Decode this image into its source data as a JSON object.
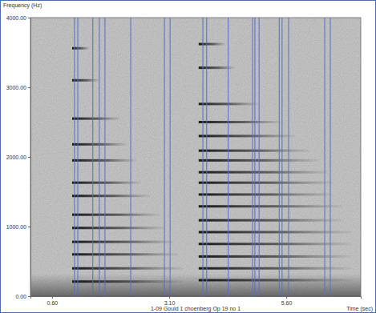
{
  "chart_data": {
    "type": "spectrogram",
    "title": "1-09 Gould 1 choenberg Op 19 no 1",
    "xlabel": "Time (sec)",
    "ylabel": "Frequency (Hz)",
    "xlim": [
      0.14,
      7.19
    ],
    "ylim": [
      0,
      4000
    ],
    "xticks": [
      {
        "value": 0.6,
        "label": "0.60"
      },
      {
        "value": 3.1,
        "label": "3.10"
      },
      {
        "value": 5.6,
        "label": "5.60"
      }
    ],
    "yticks": [
      {
        "value": 0,
        "label": "0.00"
      },
      {
        "value": 1000,
        "label": "1000.00"
      },
      {
        "value": 2000,
        "label": "2000.00"
      },
      {
        "value": 3000,
        "label": "3000.00"
      },
      {
        "value": 4000,
        "label": "4000.00"
      }
    ],
    "grid": false,
    "color": "#5b6fc0",
    "markers": [
      1.08,
      1.15,
      1.47,
      1.61,
      1.73,
      2.28,
      3.0,
      3.12,
      3.82,
      3.9,
      4.36,
      4.88,
      4.93,
      5.02,
      5.45,
      5.51,
      5.65,
      6.42,
      6.54
    ],
    "partials": [
      {
        "start": 1.03,
        "end": 1.4,
        "frequency": 3560
      },
      {
        "start": 1.03,
        "end": 1.6,
        "frequency": 3100
      },
      {
        "start": 1.03,
        "end": 2.06,
        "frequency": 2550
      },
      {
        "start": 1.03,
        "end": 2.2,
        "frequency": 2180
      },
      {
        "start": 1.03,
        "end": 2.4,
        "frequency": 1950
      },
      {
        "start": 1.03,
        "end": 2.5,
        "frequency": 1630
      },
      {
        "start": 1.03,
        "end": 2.7,
        "frequency": 1440
      },
      {
        "start": 1.03,
        "end": 2.9,
        "frequency": 1170
      },
      {
        "start": 1.03,
        "end": 3.0,
        "frequency": 980
      },
      {
        "start": 1.03,
        "end": 3.2,
        "frequency": 780
      },
      {
        "start": 1.03,
        "end": 3.3,
        "frequency": 600
      },
      {
        "start": 1.03,
        "end": 3.4,
        "frequency": 400
      },
      {
        "start": 1.03,
        "end": 3.4,
        "frequency": 210
      },
      {
        "start": 3.73,
        "end": 4.3,
        "frequency": 3620
      },
      {
        "start": 3.73,
        "end": 4.5,
        "frequency": 3280
      },
      {
        "start": 3.73,
        "end": 5.0,
        "frequency": 2760
      },
      {
        "start": 3.73,
        "end": 5.5,
        "frequency": 2500
      },
      {
        "start": 3.73,
        "end": 5.8,
        "frequency": 2300
      },
      {
        "start": 3.73,
        "end": 6.1,
        "frequency": 2090
      },
      {
        "start": 3.73,
        "end": 6.3,
        "frequency": 1950
      },
      {
        "start": 3.73,
        "end": 6.5,
        "frequency": 1780
      },
      {
        "start": 3.73,
        "end": 6.6,
        "frequency": 1630
      },
      {
        "start": 3.73,
        "end": 6.6,
        "frequency": 1460
      },
      {
        "start": 3.73,
        "end": 6.8,
        "frequency": 1290
      },
      {
        "start": 3.73,
        "end": 6.8,
        "frequency": 1090
      },
      {
        "start": 3.73,
        "end": 7.0,
        "frequency": 920
      },
      {
        "start": 3.73,
        "end": 7.0,
        "frequency": 750
      },
      {
        "start": 3.73,
        "end": 7.0,
        "frequency": 570
      },
      {
        "start": 3.73,
        "end": 7.0,
        "frequency": 400
      },
      {
        "start": 3.73,
        "end": 7.0,
        "frequency": 230
      }
    ]
  }
}
